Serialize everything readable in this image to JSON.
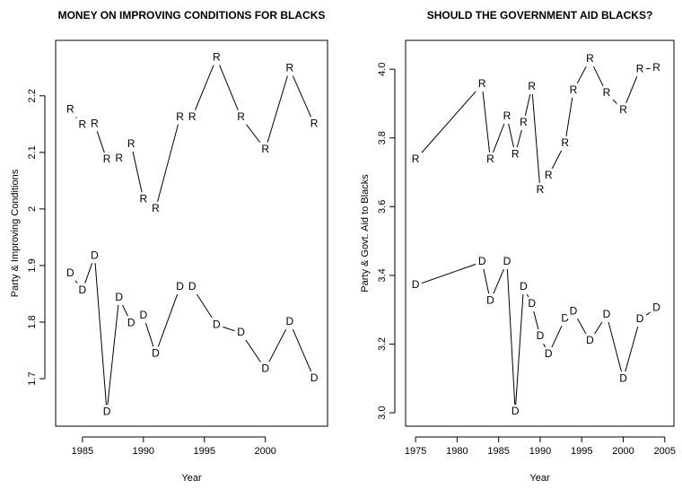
{
  "chart_data": [
    {
      "type": "line",
      "title": "MONEY ON IMPROVING CONDITIONS FOR BLACKS",
      "x_label": "Year",
      "y_label": "Party & Improving Conditions",
      "x": [
        1984,
        1985,
        1986,
        1987,
        1988,
        1989,
        1990,
        1991,
        1993,
        1994,
        1996,
        1998,
        2000,
        2002,
        2004
      ],
      "series": [
        {
          "name": "R",
          "color": "#000000",
          "values": [
            2.175,
            2.148,
            2.15,
            2.087,
            2.089,
            2.114,
            2.017,
            2.0,
            2.162,
            2.162,
            2.267,
            2.162,
            2.105,
            2.248,
            2.15
          ]
        },
        {
          "name": "D",
          "color": "#000000",
          "values": [
            1.886,
            1.856,
            1.917,
            1.641,
            1.843,
            1.798,
            1.811,
            1.744,
            1.862,
            1.862,
            1.795,
            1.781,
            1.717,
            1.8,
            1.7
          ]
        }
      ],
      "xlim": [
        1982.8,
        2005.1
      ],
      "xticks": [
        1985,
        1990,
        1995,
        2000
      ],
      "ylim": [
        1.616,
        2.298
      ],
      "yticks": [
        1.7,
        1.8,
        1.9,
        2.0,
        2.1,
        2.2
      ]
    },
    {
      "type": "line",
      "title": "SHOULD THE GOVERNMENT AID BLACKS?",
      "x_label": "Year",
      "y_label": "Party & Govt. Aid to Blacks",
      "x": [
        1975,
        1983,
        1984,
        1986,
        1987,
        1988,
        1989,
        1990,
        1991,
        1993,
        1994,
        1996,
        1998,
        2000,
        2002,
        2004
      ],
      "series": [
        {
          "name": "R",
          "color": "#000000",
          "values": [
            3.737,
            3.956,
            3.737,
            3.862,
            3.752,
            3.844,
            3.948,
            3.648,
            3.69,
            3.784,
            3.938,
            4.029,
            3.93,
            3.881,
            4.0,
            4.003
          ]
        },
        {
          "name": "D",
          "color": "#000000",
          "values": [
            3.371,
            3.439,
            3.326,
            3.439,
            3.003,
            3.366,
            3.316,
            3.222,
            3.17,
            3.274,
            3.295,
            3.209,
            3.285,
            3.099,
            3.272,
            3.305
          ]
        }
      ],
      "xlim": [
        1973.8,
        2006.1
      ],
      "xticks": [
        1975,
        1980,
        1985,
        1990,
        1995,
        2000,
        2005
      ],
      "ylim": [
        2.961,
        4.084
      ],
      "yticks": [
        {
          "value": 3.0,
          "label": "3.0"
        },
        3.2,
        3.4,
        3.6,
        3.8,
        {
          "value": 4.0,
          "label": "4.0"
        }
      ]
    }
  ]
}
